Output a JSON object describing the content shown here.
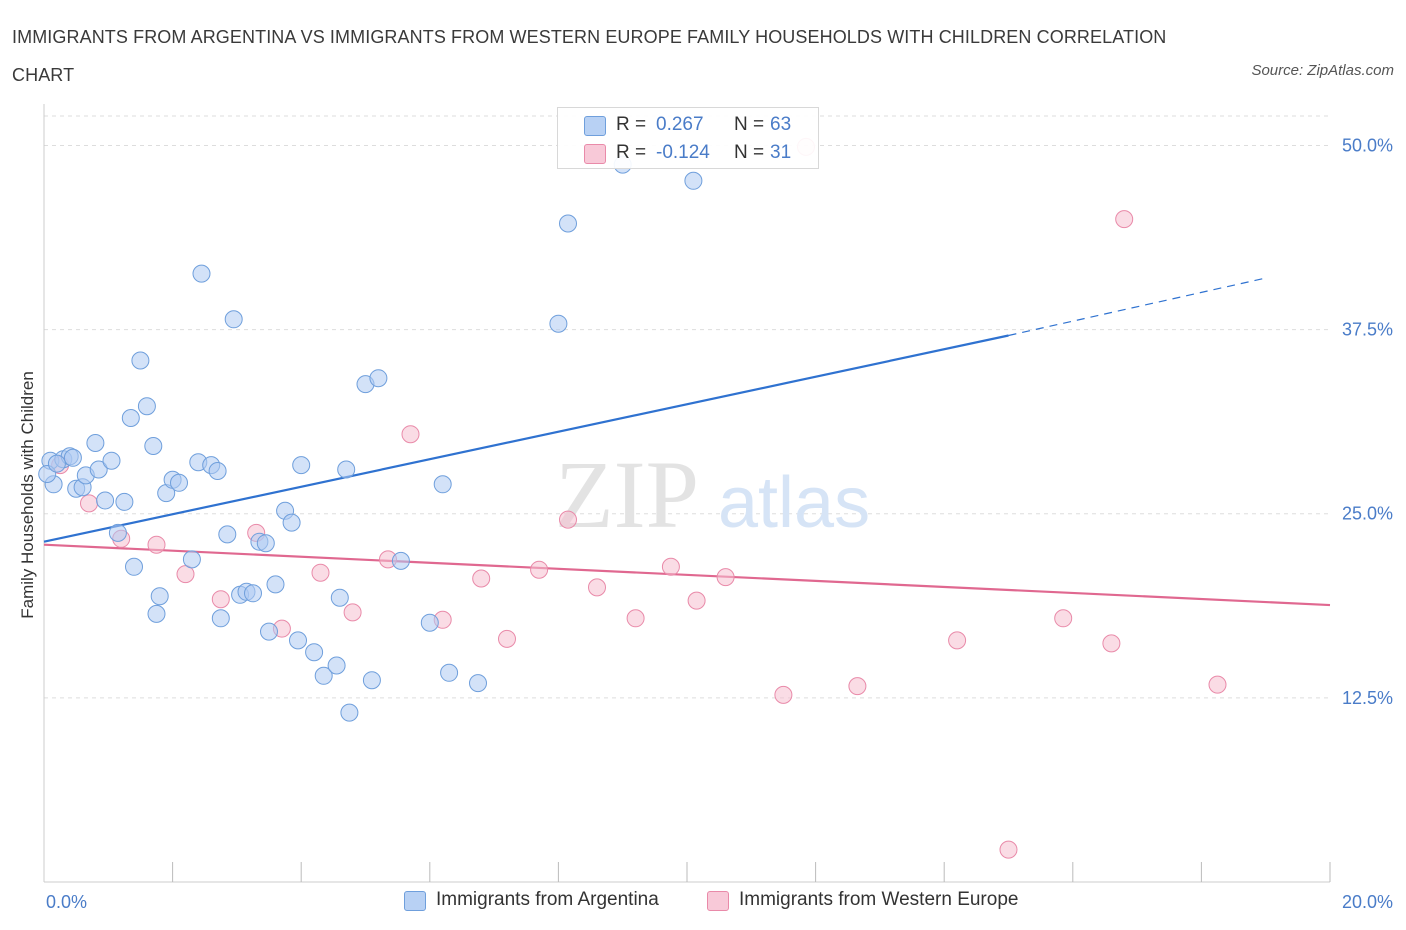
{
  "header": {
    "title": "IMMIGRANTS FROM ARGENTINA VS IMMIGRANTS FROM WESTERN EUROPE FAMILY HOUSEHOLDS WITH CHILDREN CORRELATION CHART",
    "source": "Source: ZipAtlas.com"
  },
  "watermark": {
    "zip": "ZIP",
    "atlas": "atlas"
  },
  "legend": {
    "r_label": "R =",
    "n_label": "N =",
    "rows": [
      {
        "r_value": "0.267",
        "n_value": "63"
      },
      {
        "r_value": "-0.124",
        "n_value": "31"
      }
    ]
  },
  "colors": {
    "blue_fill": "#aecbf2",
    "blue_stroke": "#6f9fdc",
    "blue_line": "#2f72d0",
    "pink_fill": "#f6bfd0",
    "pink_stroke": "#e98aa9",
    "pink_line": "#e06890",
    "grid": "#dddddd",
    "axis_text": "#4a7cc8"
  },
  "chart_data": {
    "type": "scatter",
    "title": "IMMIGRANTS FROM ARGENTINA VS IMMIGRANTS FROM WESTERN EUROPE FAMILY HOUSEHOLDS WITH CHILDREN CORRELATION CHART",
    "xlabel": "",
    "ylabel": "Family Households with Children",
    "xlim": [
      0,
      20
    ],
    "ylim": [
      0,
      52
    ],
    "x_tick_labels": [
      "0.0%",
      "20.0%"
    ],
    "y_ticks": [
      12.5,
      25.0,
      37.5,
      50.0
    ],
    "y_tick_labels": [
      "12.5%",
      "25.0%",
      "37.5%",
      "50.0%"
    ],
    "grid": true,
    "legend_position": "top-center",
    "series": [
      {
        "name": "Immigrants from Argentina",
        "color": "blue",
        "R": 0.267,
        "N": 63,
        "trend": {
          "x_start": 0,
          "y_start": 23.1,
          "x_end": 15.0,
          "y_end": 37.1,
          "dashed_to_x": 19.0,
          "dashed_to_y": 41.0
        },
        "points": [
          [
            0.1,
            28.6
          ],
          [
            0.15,
            27.0
          ],
          [
            0.3,
            28.7
          ],
          [
            0.4,
            28.9
          ],
          [
            0.5,
            26.7
          ],
          [
            0.6,
            26.8
          ],
          [
            0.65,
            27.6
          ],
          [
            0.8,
            29.8
          ],
          [
            0.85,
            28.0
          ],
          [
            0.95,
            25.9
          ],
          [
            1.05,
            28.6
          ],
          [
            1.15,
            23.7
          ],
          [
            1.25,
            25.8
          ],
          [
            1.35,
            31.5
          ],
          [
            1.4,
            21.4
          ],
          [
            1.5,
            35.4
          ],
          [
            1.6,
            32.3
          ],
          [
            1.7,
            29.6
          ],
          [
            1.75,
            18.2
          ],
          [
            1.8,
            19.4
          ],
          [
            1.9,
            26.4
          ],
          [
            2.0,
            27.3
          ],
          [
            2.1,
            27.1
          ],
          [
            2.3,
            21.9
          ],
          [
            2.4,
            28.5
          ],
          [
            2.45,
            41.3
          ],
          [
            2.6,
            28.3
          ],
          [
            2.7,
            27.9
          ],
          [
            2.75,
            17.9
          ],
          [
            2.85,
            23.6
          ],
          [
            2.95,
            38.2
          ],
          [
            3.05,
            19.5
          ],
          [
            3.15,
            19.7
          ],
          [
            3.25,
            19.6
          ],
          [
            3.35,
            23.1
          ],
          [
            3.45,
            23.0
          ],
          [
            3.5,
            17.0
          ],
          [
            3.6,
            20.2
          ],
          [
            3.75,
            25.2
          ],
          [
            3.85,
            24.4
          ],
          [
            3.95,
            16.4
          ],
          [
            4.0,
            28.3
          ],
          [
            4.2,
            15.6
          ],
          [
            4.35,
            14.0
          ],
          [
            4.55,
            14.7
          ],
          [
            4.6,
            19.3
          ],
          [
            4.7,
            28.0
          ],
          [
            4.75,
            11.5
          ],
          [
            5.0,
            33.8
          ],
          [
            5.1,
            13.7
          ],
          [
            5.2,
            34.2
          ],
          [
            5.55,
            21.8
          ],
          [
            6.0,
            17.6
          ],
          [
            6.2,
            27.0
          ],
          [
            6.3,
            14.2
          ],
          [
            6.75,
            13.5
          ],
          [
            8.0,
            37.9
          ],
          [
            8.15,
            44.7
          ],
          [
            9.0,
            48.7
          ],
          [
            10.1,
            47.6
          ],
          [
            0.05,
            27.7
          ],
          [
            0.2,
            28.4
          ],
          [
            0.45,
            28.8
          ]
        ]
      },
      {
        "name": "Immigrants from Western Europe",
        "color": "pink",
        "R": -0.124,
        "N": 31,
        "trend": {
          "x_start": 0,
          "y_start": 22.9,
          "x_end": 20.0,
          "y_end": 18.8
        },
        "points": [
          [
            0.25,
            28.3
          ],
          [
            0.7,
            25.7
          ],
          [
            1.2,
            23.3
          ],
          [
            1.75,
            22.9
          ],
          [
            2.2,
            20.9
          ],
          [
            2.75,
            19.2
          ],
          [
            3.3,
            23.7
          ],
          [
            3.7,
            17.2
          ],
          [
            4.3,
            21.0
          ],
          [
            4.8,
            18.3
          ],
          [
            5.35,
            21.9
          ],
          [
            5.7,
            30.4
          ],
          [
            6.2,
            17.8
          ],
          [
            6.8,
            20.6
          ],
          [
            7.2,
            16.5
          ],
          [
            7.7,
            21.2
          ],
          [
            8.15,
            24.6
          ],
          [
            8.6,
            20.0
          ],
          [
            9.2,
            17.9
          ],
          [
            9.75,
            21.4
          ],
          [
            10.15,
            19.1
          ],
          [
            10.6,
            20.7
          ],
          [
            11.5,
            12.7
          ],
          [
            12.65,
            13.3
          ],
          [
            11.85,
            49.9
          ],
          [
            14.2,
            16.4
          ],
          [
            15.0,
            2.2
          ],
          [
            15.85,
            17.9
          ],
          [
            16.6,
            16.2
          ],
          [
            16.8,
            45.0
          ],
          [
            18.25,
            13.4
          ]
        ]
      }
    ]
  },
  "bottom_legend": {
    "items": [
      {
        "label": "Immigrants from Argentina"
      },
      {
        "label": "Immigrants from Western Europe"
      }
    ]
  }
}
